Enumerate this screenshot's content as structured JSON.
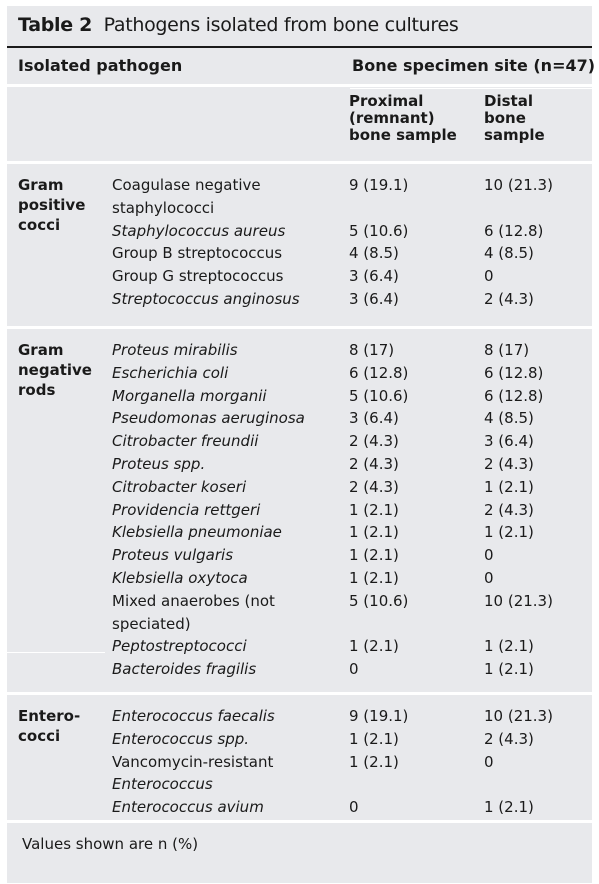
{
  "title": {
    "label": "Table 2",
    "text": "Pathogens isolated from bone cultures"
  },
  "header": {
    "col1": "Isolated pathogen",
    "col2": "Bone specimen site (n=47)",
    "sub_proximal": [
      "Proximal",
      "(remnant)",
      "bone sample"
    ],
    "sub_distal": [
      "Distal",
      "bone",
      "sample"
    ]
  },
  "groups": [
    {
      "name": [
        "Gram",
        "positive",
        "cocci"
      ],
      "rows": [
        {
          "pathogen": [
            "Coagulase negative",
            "staphylococci"
          ],
          "italic": false,
          "proximal": "9 (19.1)",
          "distal": "10 (21.3)"
        },
        {
          "pathogen": [
            "Staphylococcus aureus"
          ],
          "italic": true,
          "proximal": "5 (10.6)",
          "distal": "6 (12.8)"
        },
        {
          "pathogen": [
            "Group B streptococcus"
          ],
          "italic": false,
          "proximal": "4 (8.5)",
          "distal": "4 (8.5)"
        },
        {
          "pathogen": [
            "Group G streptococcus"
          ],
          "italic": false,
          "proximal": "3 (6.4)",
          "distal": "0"
        },
        {
          "pathogen": [
            "Streptococcus anginosus"
          ],
          "italic": true,
          "proximal": "3 (6.4)",
          "distal": "2 (4.3)"
        }
      ]
    },
    {
      "name": [
        "Gram",
        "negative",
        "rods"
      ],
      "rows": [
        {
          "pathogen": [
            "Proteus mirabilis"
          ],
          "italic": true,
          "proximal": "8 (17)",
          "distal": "8 (17)"
        },
        {
          "pathogen": [
            "Escherichia coli"
          ],
          "italic": true,
          "proximal": "6 (12.8)",
          "distal": "6 (12.8)"
        },
        {
          "pathogen": [
            "Morganella morganii"
          ],
          "italic": true,
          "proximal": "5 (10.6)",
          "distal": "6 (12.8)"
        },
        {
          "pathogen": [
            "Pseudomonas aeruginosa"
          ],
          "italic": true,
          "proximal": "3 (6.4)",
          "distal": "4 (8.5)"
        },
        {
          "pathogen": [
            "Citrobacter freundii"
          ],
          "italic": true,
          "proximal": "2 (4.3)",
          "distal": "3 (6.4)"
        },
        {
          "pathogen": [
            "Proteus spp."
          ],
          "italic": true,
          "proximal": "2 (4.3)",
          "distal": "2 (4.3)"
        },
        {
          "pathogen": [
            "Citrobacter koseri"
          ],
          "italic": true,
          "proximal": "2 (4.3)",
          "distal": "1 (2.1)"
        },
        {
          "pathogen": [
            "Providencia rettgeri"
          ],
          "italic": true,
          "proximal": "1 (2.1)",
          "distal": "2 (4.3)"
        },
        {
          "pathogen": [
            "Klebsiella pneumoniae"
          ],
          "italic": true,
          "proximal": "1 (2.1)",
          "distal": "1 (2.1)"
        },
        {
          "pathogen": [
            "Proteus vulgaris"
          ],
          "italic": true,
          "proximal": "1 (2.1)",
          "distal": "0"
        },
        {
          "pathogen": [
            "Klebsiella oxytoca"
          ],
          "italic": true,
          "proximal": "1 (2.1)",
          "distal": "0"
        },
        {
          "pathogen": [
            "Mixed anaerobes (not",
            "speciated)"
          ],
          "italic": false,
          "proximal": "5 (10.6)",
          "distal": "10 (21.3)"
        },
        {
          "pathogen": [
            "Peptostreptococci"
          ],
          "italic": true,
          "proximal": "1 (2.1)",
          "distal": "1 (2.1)"
        },
        {
          "pathogen": [
            "Bacteroides fragilis"
          ],
          "italic": true,
          "proximal": "0",
          "distal": "1 (2.1)"
        }
      ]
    },
    {
      "name": [
        "Entero-",
        "cocci"
      ],
      "rows": [
        {
          "pathogen": [
            "Enterococcus faecalis"
          ],
          "italic": true,
          "proximal": "9 (19.1)",
          "distal": "10 (21.3)"
        },
        {
          "pathogen": [
            "Enterococcus spp."
          ],
          "italic": true,
          "proximal": "1 (2.1)",
          "distal": "2 (4.3)"
        },
        {
          "pathogen": [
            "Vancomycin-resistant",
            "Enterococcus"
          ],
          "italic": false,
          "italic_line2": true,
          "proximal": "1 (2.1)",
          "distal": "0"
        },
        {
          "pathogen": [
            "Enterococcus avium"
          ],
          "italic": true,
          "proximal": "0",
          "distal": "1 (2.1)"
        }
      ]
    }
  ],
  "footnote": "Values shown are n (%)"
}
